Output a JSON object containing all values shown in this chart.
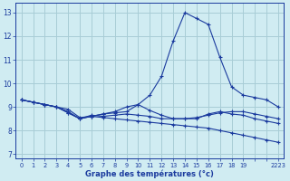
{
  "title": "Graphe des températures (°c)",
  "background_color": "#d0ecf2",
  "grid_color": "#a8cdd6",
  "line_color": "#1a3a9e",
  "ylim": [
    6.8,
    13.4
  ],
  "yticks": [
    7,
    8,
    9,
    10,
    11,
    12,
    13
  ],
  "xtick_labels": [
    "0",
    "1",
    "2",
    "3",
    "4",
    "5",
    "6",
    "7",
    "8",
    "9",
    "10",
    "11",
    "12",
    "13",
    "14",
    "15",
    "16",
    "17",
    "18",
    "19",
    "",
    "",
    "2223"
  ],
  "series": [
    {
      "y": [
        9.3,
        9.2,
        9.1,
        9.0,
        8.9,
        8.55,
        8.6,
        8.55,
        8.5,
        8.45,
        8.4,
        8.35,
        8.3,
        8.25,
        8.2,
        8.15,
        8.1,
        8.0,
        7.9,
        7.8,
        7.7,
        7.6,
        7.5
      ]
    },
    {
      "y": [
        9.3,
        9.2,
        9.1,
        9.0,
        8.8,
        8.5,
        8.6,
        8.7,
        8.8,
        9.0,
        9.1,
        9.5,
        10.3,
        11.8,
        13.0,
        12.75,
        12.5,
        11.1,
        9.85,
        9.5,
        9.4,
        9.3,
        9.0
      ]
    },
    {
      "y": [
        9.3,
        9.2,
        9.1,
        9.0,
        8.75,
        8.5,
        8.6,
        8.7,
        8.75,
        8.8,
        9.1,
        8.85,
        8.65,
        8.5,
        8.5,
        8.5,
        8.7,
        8.8,
        8.7,
        8.65,
        8.5,
        8.4,
        8.3
      ]
    },
    {
      "y": [
        9.3,
        9.2,
        9.1,
        9.0,
        8.75,
        8.5,
        8.65,
        8.6,
        8.65,
        8.7,
        8.65,
        8.6,
        8.5,
        8.5,
        8.5,
        8.55,
        8.65,
        8.75,
        8.8,
        8.8,
        8.7,
        8.6,
        8.5
      ]
    }
  ]
}
